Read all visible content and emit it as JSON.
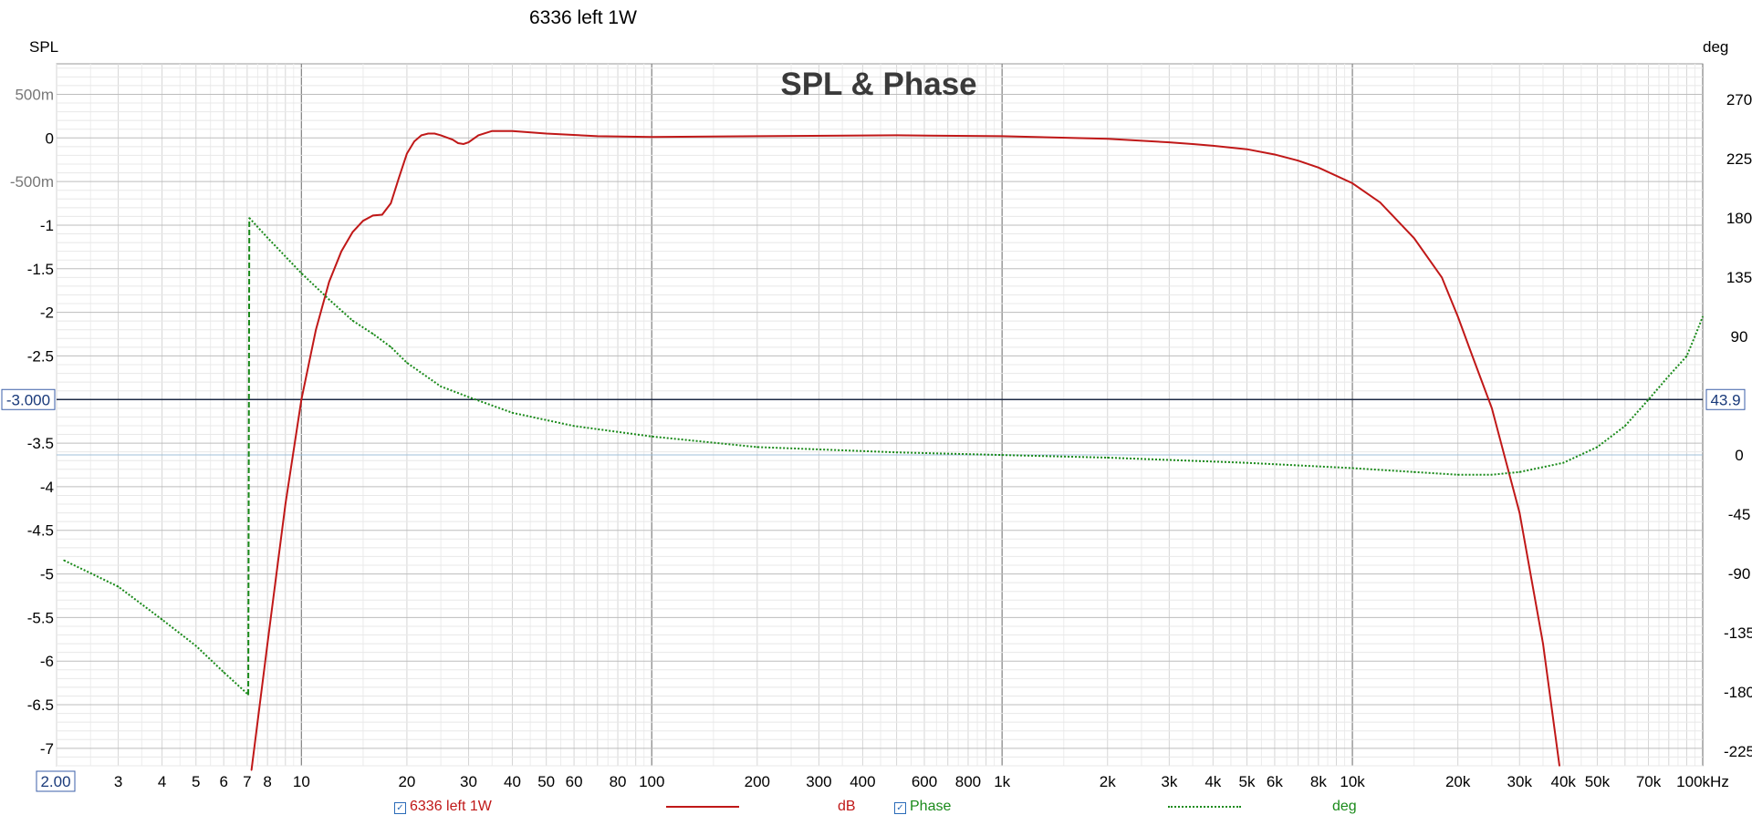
{
  "window_title": "6336 left 1W",
  "chart_data": {
    "type": "line",
    "title": "SPL & Phase",
    "left_axis_label": "SPL",
    "right_axis_label": "deg",
    "x_scale": "log",
    "x_range": [
      2,
      100000
    ],
    "x_start_label": "2.00",
    "x_unit": "Hz",
    "x_ticks": [
      {
        "v": 3,
        "label": "3"
      },
      {
        "v": 4,
        "label": "4"
      },
      {
        "v": 5,
        "label": "5"
      },
      {
        "v": 6,
        "label": "6"
      },
      {
        "v": 7,
        "label": "7"
      },
      {
        "v": 8,
        "label": "8"
      },
      {
        "v": 10,
        "label": "10"
      },
      {
        "v": 20,
        "label": "20"
      },
      {
        "v": 30,
        "label": "30"
      },
      {
        "v": 40,
        "label": "40"
      },
      {
        "v": 50,
        "label": "50"
      },
      {
        "v": 60,
        "label": "60"
      },
      {
        "v": 80,
        "label": "80"
      },
      {
        "v": 100,
        "label": "100"
      },
      {
        "v": 200,
        "label": "200"
      },
      {
        "v": 300,
        "label": "300"
      },
      {
        "v": 400,
        "label": "400"
      },
      {
        "v": 600,
        "label": "600"
      },
      {
        "v": 800,
        "label": "800"
      },
      {
        "v": 1000,
        "label": "1k"
      },
      {
        "v": 2000,
        "label": "2k"
      },
      {
        "v": 3000,
        "label": "3k"
      },
      {
        "v": 4000,
        "label": "4k"
      },
      {
        "v": 5000,
        "label": "5k"
      },
      {
        "v": 6000,
        "label": "6k"
      },
      {
        "v": 8000,
        "label": "8k"
      },
      {
        "v": 10000,
        "label": "10k"
      },
      {
        "v": 20000,
        "label": "20k"
      },
      {
        "v": 30000,
        "label": "30k"
      },
      {
        "v": 40000,
        "label": "40k"
      },
      {
        "v": 50000,
        "label": "50k"
      },
      {
        "v": 70000,
        "label": "70k"
      },
      {
        "v": 100000,
        "label": "100kHz"
      }
    ],
    "y_left_range": [
      -7.2,
      0.85
    ],
    "y_left_ticks": [
      {
        "v": 0.5,
        "label": "500m"
      },
      {
        "v": 0,
        "label": "0"
      },
      {
        "v": -0.5,
        "label": "-500m"
      },
      {
        "v": -1,
        "label": "-1"
      },
      {
        "v": -1.5,
        "label": "-1.5"
      },
      {
        "v": -2,
        "label": "-2"
      },
      {
        "v": -2.5,
        "label": "-2.5"
      },
      {
        "v": -3.5,
        "label": "-3.5"
      },
      {
        "v": -4,
        "label": "-4"
      },
      {
        "v": -4.5,
        "label": "-4.5"
      },
      {
        "v": -5,
        "label": "-5"
      },
      {
        "v": -5.5,
        "label": "-5.5"
      },
      {
        "v": -6,
        "label": "-6"
      },
      {
        "v": -6.5,
        "label": "-6.5"
      },
      {
        "v": -7,
        "label": "-7"
      }
    ],
    "y_right_range": [
      -236,
      297
    ],
    "y_right_ticks": [
      {
        "v": 270,
        "label": "270"
      },
      {
        "v": 225,
        "label": "225"
      },
      {
        "v": 180,
        "label": "180"
      },
      {
        "v": 135,
        "label": "135"
      },
      {
        "v": 90,
        "label": "90"
      },
      {
        "v": 0,
        "label": "0"
      },
      {
        "v": -45,
        "label": "-45"
      },
      {
        "v": -90,
        "label": "-90"
      },
      {
        "v": -135,
        "label": "-135"
      },
      {
        "v": -180,
        "label": "-180"
      },
      {
        "v": -225,
        "label": "-225"
      }
    ],
    "cursor": {
      "left_value": -3.0,
      "left_label": "-3.000",
      "right_label": "43.9"
    },
    "grid": true,
    "series": [
      {
        "name": "6336 left 1W",
        "axis": "left",
        "unit": "dB",
        "color": "#c01818",
        "style": "solid",
        "x": [
          7.2,
          8,
          9,
          10,
          11,
          12,
          13,
          14,
          15,
          16,
          17,
          18,
          19,
          20,
          21,
          22,
          23,
          24,
          25,
          27,
          28,
          29,
          30,
          32,
          35,
          40,
          50,
          70,
          100,
          200,
          500,
          1000,
          2000,
          3000,
          3500,
          4000,
          5000,
          6000,
          7000,
          8000,
          10000,
          12000,
          15000,
          18000,
          20000,
          22000,
          25000,
          30000,
          35000,
          39000
        ],
        "y": [
          -7.25,
          -5.8,
          -4.2,
          -3.0,
          -2.2,
          -1.65,
          -1.3,
          -1.08,
          -0.95,
          -0.89,
          -0.88,
          -0.75,
          -0.45,
          -0.18,
          -0.04,
          0.03,
          0.05,
          0.05,
          0.03,
          -0.02,
          -0.06,
          -0.07,
          -0.05,
          0.03,
          0.08,
          0.08,
          0.05,
          0.02,
          0.01,
          0.02,
          0.03,
          0.02,
          -0.01,
          -0.05,
          -0.07,
          -0.09,
          -0.13,
          -0.19,
          -0.26,
          -0.34,
          -0.52,
          -0.74,
          -1.15,
          -1.6,
          -2.05,
          -2.5,
          -3.1,
          -4.3,
          -5.8,
          -7.2
        ]
      },
      {
        "name": "Phase",
        "axis": "right",
        "unit": "deg",
        "color": "#1a8a1a",
        "style": "dotted",
        "x": [
          2.1,
          3,
          4,
          5,
          6,
          7.05,
          7.1,
          8,
          10,
          12,
          14,
          16,
          18,
          20,
          25,
          30,
          40,
          60,
          100,
          200,
          500,
          1000,
          2000,
          5000,
          10000,
          15000,
          20000,
          25000,
          30000,
          40000,
          50000,
          60000,
          70000,
          80000,
          90000,
          95000,
          100000
        ],
        "y": [
          -80,
          -100,
          -125,
          -145,
          -165,
          -182,
          180,
          165,
          138,
          118,
          102,
          92,
          82,
          70,
          52,
          44,
          32,
          22,
          14,
          6,
          2,
          0,
          -2,
          -6,
          -10,
          -13,
          -15,
          -15,
          -13,
          -6,
          6,
          22,
          42,
          60,
          75,
          90,
          105
        ]
      }
    ],
    "legend": [
      {
        "label": "6336 left 1W",
        "checked": true,
        "unit": "dB",
        "color": "#c01818"
      },
      {
        "label": "Phase",
        "checked": true,
        "unit": "deg",
        "color": "#1a8a1a"
      }
    ]
  }
}
